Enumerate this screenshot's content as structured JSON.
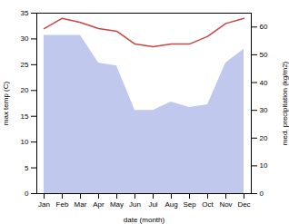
{
  "chart_data": {
    "type": "line",
    "xlabel": "date (month)",
    "ylabel": "max temp (C)",
    "y2label": "med. precipitation (kg/m2)",
    "categories": [
      "Jan",
      "Feb",
      "Mar",
      "Apr",
      "May",
      "Jun",
      "Jul",
      "Aug",
      "Sep",
      "Oct",
      "Nov",
      "Dec"
    ],
    "ylim": [
      0,
      35
    ],
    "yticks": [
      0,
      5,
      10,
      15,
      20,
      25,
      30,
      35
    ],
    "y2lim": [
      0,
      65
    ],
    "y2ticks": [
      0,
      10,
      20,
      30,
      40,
      50,
      60
    ],
    "grid": false,
    "series": [
      {
        "type": "area",
        "axis": "y2",
        "color": "#c0c8ee",
        "values": [
          57,
          57,
          57,
          47,
          46,
          30,
          30,
          33,
          31,
          32,
          47,
          52
        ]
      },
      {
        "type": "line",
        "color": "#cc4444",
        "values": [
          32.0,
          34.0,
          33.2,
          32.0,
          31.5,
          29.0,
          28.5,
          29.0,
          29.0,
          30.5,
          33.0,
          34.0
        ]
      }
    ]
  }
}
